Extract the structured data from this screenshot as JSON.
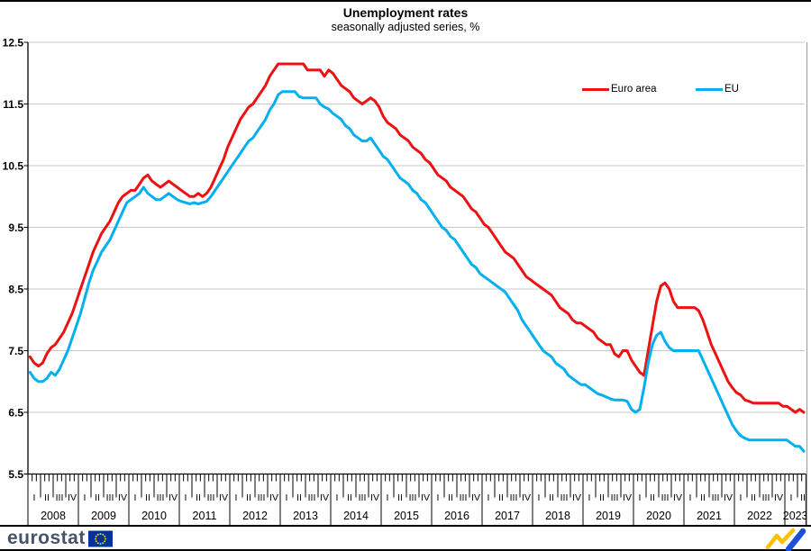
{
  "chart_data": {
    "type": "line",
    "title": "Unemployment rates",
    "subtitle": "seasonally adjusted series, %",
    "unit": "%",
    "ylim": [
      5.5,
      12.5
    ],
    "yticks": [
      5.5,
      6.5,
      7.5,
      8.5,
      9.5,
      10.5,
      11.5,
      12.5
    ],
    "grid": true,
    "legend_position": "top-right",
    "x_start": "2008-01",
    "x_end": "2023-05",
    "years": [
      {
        "label": "2008",
        "months": 12,
        "quarters": [
          "I",
          "II",
          "III",
          "IV"
        ]
      },
      {
        "label": "2009",
        "months": 12,
        "quarters": [
          "I",
          "II",
          "III",
          "IV"
        ]
      },
      {
        "label": "2010",
        "months": 12,
        "quarters": [
          "I",
          "II",
          "III",
          "IV"
        ]
      },
      {
        "label": "2011",
        "months": 12,
        "quarters": [
          "I",
          "II",
          "III",
          "IV"
        ]
      },
      {
        "label": "2012",
        "months": 12,
        "quarters": [
          "I",
          "II",
          "III",
          "IV"
        ]
      },
      {
        "label": "2013",
        "months": 12,
        "quarters": [
          "I",
          "II",
          "III",
          "IV"
        ]
      },
      {
        "label": "2014",
        "months": 12,
        "quarters": [
          "I",
          "II",
          "III",
          "IV"
        ]
      },
      {
        "label": "2015",
        "months": 12,
        "quarters": [
          "I",
          "II",
          "III",
          "IV"
        ]
      },
      {
        "label": "2016",
        "months": 12,
        "quarters": [
          "I",
          "II",
          "III",
          "IV"
        ]
      },
      {
        "label": "2017",
        "months": 12,
        "quarters": [
          "I",
          "II",
          "III",
          "IV"
        ]
      },
      {
        "label": "2018",
        "months": 12,
        "quarters": [
          "I",
          "II",
          "III",
          "IV"
        ]
      },
      {
        "label": "2019",
        "months": 12,
        "quarters": [
          "I",
          "II",
          "III",
          "IV"
        ]
      },
      {
        "label": "2020",
        "months": 12,
        "quarters": [
          "I",
          "II",
          "III",
          "IV"
        ]
      },
      {
        "label": "2021",
        "months": 12,
        "quarters": [
          "I",
          "II",
          "III",
          "IV"
        ]
      },
      {
        "label": "2022",
        "months": 12,
        "quarters": [
          "I",
          "II",
          "III",
          "IV"
        ]
      },
      {
        "label": "2023",
        "months": 5,
        "quarters": [
          "I",
          "II"
        ]
      }
    ],
    "series": [
      {
        "name": "Euro area",
        "color": "#ed1111",
        "values": [
          7.4,
          7.3,
          7.25,
          7.3,
          7.45,
          7.55,
          7.6,
          7.7,
          7.8,
          7.95,
          8.1,
          8.3,
          8.5,
          8.7,
          8.9,
          9.1,
          9.25,
          9.4,
          9.5,
          9.6,
          9.75,
          9.9,
          10.0,
          10.05,
          10.1,
          10.1,
          10.2,
          10.3,
          10.35,
          10.25,
          10.2,
          10.15,
          10.2,
          10.25,
          10.2,
          10.15,
          10.1,
          10.05,
          10.0,
          10.0,
          10.05,
          10.0,
          10.05,
          10.15,
          10.3,
          10.45,
          10.6,
          10.8,
          10.95,
          11.1,
          11.25,
          11.35,
          11.45,
          11.5,
          11.6,
          11.7,
          11.8,
          11.95,
          12.05,
          12.15,
          12.15,
          12.15,
          12.15,
          12.15,
          12.15,
          12.15,
          12.05,
          12.05,
          12.05,
          12.05,
          11.95,
          12.05,
          12.0,
          11.9,
          11.8,
          11.75,
          11.7,
          11.6,
          11.55,
          11.5,
          11.55,
          11.6,
          11.55,
          11.45,
          11.3,
          11.2,
          11.15,
          11.1,
          11.0,
          10.95,
          10.9,
          10.8,
          10.75,
          10.7,
          10.6,
          10.55,
          10.45,
          10.35,
          10.3,
          10.25,
          10.15,
          10.1,
          10.05,
          10.0,
          9.9,
          9.8,
          9.75,
          9.65,
          9.55,
          9.5,
          9.4,
          9.3,
          9.2,
          9.1,
          9.05,
          9.0,
          8.9,
          8.8,
          8.7,
          8.65,
          8.6,
          8.55,
          8.5,
          8.45,
          8.4,
          8.3,
          8.2,
          8.15,
          8.1,
          8.0,
          7.95,
          7.95,
          7.9,
          7.85,
          7.8,
          7.7,
          7.65,
          7.6,
          7.6,
          7.45,
          7.4,
          7.5,
          7.5,
          7.35,
          7.25,
          7.15,
          7.1,
          7.5,
          7.9,
          8.3,
          8.55,
          8.6,
          8.5,
          8.3,
          8.2,
          8.2,
          8.2,
          8.2,
          8.2,
          8.15,
          8.0,
          7.8,
          7.6,
          7.45,
          7.3,
          7.15,
          7.0,
          6.9,
          6.82,
          6.78,
          6.7,
          6.68,
          6.65,
          6.65,
          6.65,
          6.65,
          6.65,
          6.65,
          6.65,
          6.6,
          6.6,
          6.55,
          6.5,
          6.55,
          6.5
        ]
      },
      {
        "name": "EU",
        "color": "#00b0f0",
        "values": [
          7.15,
          7.05,
          7.0,
          7.0,
          7.05,
          7.15,
          7.1,
          7.2,
          7.35,
          7.5,
          7.7,
          7.9,
          8.1,
          8.35,
          8.6,
          8.8,
          8.95,
          9.1,
          9.2,
          9.3,
          9.45,
          9.6,
          9.75,
          9.9,
          9.95,
          10.0,
          10.05,
          10.15,
          10.05,
          10.0,
          9.95,
          9.95,
          10.0,
          10.05,
          10.0,
          9.95,
          9.92,
          9.9,
          9.88,
          9.9,
          9.88,
          9.9,
          9.92,
          10.0,
          10.1,
          10.2,
          10.3,
          10.4,
          10.5,
          10.6,
          10.7,
          10.8,
          10.9,
          10.95,
          11.05,
          11.15,
          11.25,
          11.4,
          11.5,
          11.65,
          11.7,
          11.7,
          11.7,
          11.7,
          11.62,
          11.6,
          11.6,
          11.6,
          11.6,
          11.5,
          11.45,
          11.42,
          11.35,
          11.3,
          11.25,
          11.15,
          11.1,
          11.0,
          10.95,
          10.9,
          10.9,
          10.95,
          10.85,
          10.75,
          10.65,
          10.6,
          10.5,
          10.4,
          10.3,
          10.25,
          10.2,
          10.1,
          10.05,
          9.95,
          9.9,
          9.8,
          9.7,
          9.6,
          9.5,
          9.45,
          9.35,
          9.3,
          9.2,
          9.1,
          9.0,
          8.9,
          8.85,
          8.75,
          8.7,
          8.65,
          8.6,
          8.55,
          8.5,
          8.45,
          8.35,
          8.25,
          8.15,
          8.0,
          7.9,
          7.8,
          7.7,
          7.6,
          7.5,
          7.45,
          7.4,
          7.3,
          7.25,
          7.2,
          7.1,
          7.05,
          7.0,
          6.95,
          6.95,
          6.9,
          6.85,
          6.8,
          6.78,
          6.75,
          6.72,
          6.7,
          6.7,
          6.7,
          6.68,
          6.55,
          6.5,
          6.55,
          6.9,
          7.3,
          7.6,
          7.75,
          7.8,
          7.65,
          7.55,
          7.5,
          7.5,
          7.5,
          7.5,
          7.5,
          7.5,
          7.5,
          7.35,
          7.2,
          7.05,
          6.9,
          6.75,
          6.6,
          6.45,
          6.3,
          6.2,
          6.12,
          6.08,
          6.05,
          6.05,
          6.05,
          6.05,
          6.05,
          6.05,
          6.05,
          6.05,
          6.05,
          6.05,
          6.0,
          5.95,
          5.95,
          5.87
        ]
      }
    ]
  },
  "footer": {
    "brand": "eurostat"
  },
  "icons": {
    "eu_flag": "eu-flag-icon",
    "corner_mark": "line-chart-logo-icon"
  },
  "colors": {
    "euro_area": "#ed1111",
    "eu": "#00b0f0",
    "gridline": "#c8c8c8",
    "axis": "#000000",
    "brand_text": "#44546a",
    "flag_blue": "#003399",
    "flag_star": "#ffcc00",
    "logo_yellow": "#ffc000",
    "logo_blue": "#1d50d8"
  }
}
